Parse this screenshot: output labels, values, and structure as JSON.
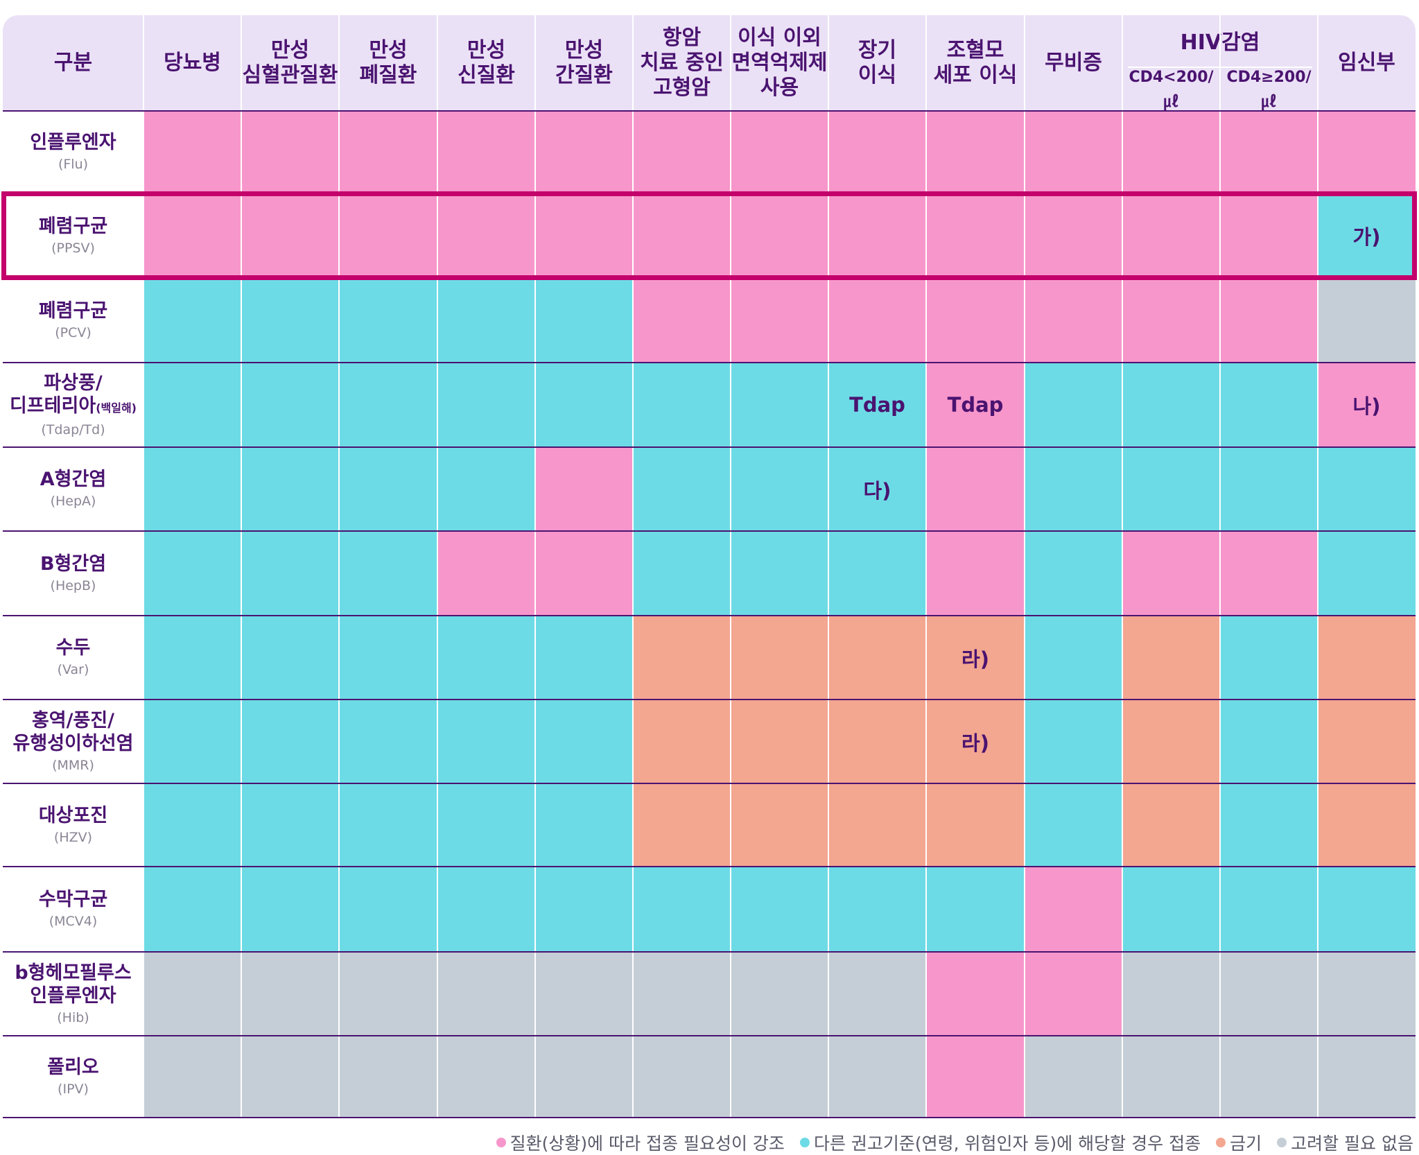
{
  "chart_data": {
    "type": "table",
    "corner_label": "구분",
    "columns": [
      {
        "label": "당뇨병"
      },
      {
        "label": "만성\n심혈관질환"
      },
      {
        "label": "만성\n폐질환"
      },
      {
        "label": "만성\n신질환"
      },
      {
        "label": "만성\n간질환"
      },
      {
        "label": "항암\n치료 중인\n고형암"
      },
      {
        "label": "이식 이외\n면역억제제\n사용"
      },
      {
        "label": "장기\n이식"
      },
      {
        "label": "조혈모\n세포 이식"
      },
      {
        "label": "무비증"
      },
      {
        "label": "CD4<200/㎕",
        "group": "HIV감염"
      },
      {
        "label": "CD4≥200/㎕",
        "group": "HIV감염"
      },
      {
        "label": "임신부"
      }
    ],
    "group_label": "HIV감염",
    "rows": [
      {
        "name": "인플루엔자",
        "abbr": "(Flu)",
        "cells": [
          "E",
          "E",
          "E",
          "E",
          "E",
          "E",
          "E",
          "E",
          "E",
          "E",
          "E",
          "E",
          "E"
        ],
        "notes": {}
      },
      {
        "name": "폐렴구균",
        "abbr": "(PPSV)",
        "cells": [
          "E",
          "E",
          "E",
          "E",
          "E",
          "E",
          "E",
          "E",
          "E",
          "E",
          "E",
          "E",
          "R"
        ],
        "notes": {
          "12": "가)"
        }
      },
      {
        "name": "폐렴구균",
        "abbr": "(PCV)",
        "cells": [
          "R",
          "R",
          "R",
          "R",
          "R",
          "E",
          "E",
          "E",
          "E",
          "E",
          "E",
          "E",
          "N"
        ],
        "notes": {}
      },
      {
        "name": "파상풍/\n디프테리아",
        "name_small": "(백일해)",
        "abbr": "(Tdap/Td)",
        "cells": [
          "R",
          "R",
          "R",
          "R",
          "R",
          "R",
          "R",
          "R",
          "E",
          "R",
          "R",
          "R",
          "E"
        ],
        "notes": {
          "7": "Tdap",
          "8": "Tdap",
          "12": "나)"
        }
      },
      {
        "name": "A형간염",
        "abbr": "(HepA)",
        "cells": [
          "R",
          "R",
          "R",
          "R",
          "E",
          "R",
          "R",
          "R",
          "E",
          "R",
          "R",
          "R",
          "R"
        ],
        "notes": {
          "7": "다)"
        }
      },
      {
        "name": "B형간염",
        "abbr": "(HepB)",
        "cells": [
          "R",
          "R",
          "R",
          "E",
          "E",
          "R",
          "R",
          "R",
          "E",
          "R",
          "E",
          "E",
          "R"
        ],
        "notes": {}
      },
      {
        "name": "수두",
        "abbr": "(Var)",
        "cells": [
          "R",
          "R",
          "R",
          "R",
          "R",
          "C",
          "C",
          "C",
          "C",
          "R",
          "C",
          "R",
          "C"
        ],
        "notes": {
          "8": "라)"
        }
      },
      {
        "name": "홍역/풍진/\n유행성이하선염",
        "abbr": "(MMR)",
        "cells": [
          "R",
          "R",
          "R",
          "R",
          "R",
          "C",
          "C",
          "C",
          "C",
          "R",
          "C",
          "R",
          "C"
        ],
        "notes": {
          "8": "라)"
        }
      },
      {
        "name": "대상포진",
        "abbr": "(HZV)",
        "cells": [
          "R",
          "R",
          "R",
          "R",
          "R",
          "C",
          "C",
          "C",
          "C",
          "R",
          "C",
          "R",
          "C"
        ],
        "notes": {}
      },
      {
        "name": "수막구균",
        "abbr": "(MCV4)",
        "cells": [
          "R",
          "R",
          "R",
          "R",
          "R",
          "R",
          "R",
          "R",
          "R",
          "E",
          "R",
          "R",
          "R"
        ],
        "notes": {}
      },
      {
        "name": "b형헤모필루스\n인플루엔자",
        "abbr": "(Hib)",
        "cells": [
          "N",
          "N",
          "N",
          "N",
          "N",
          "N",
          "N",
          "N",
          "E",
          "E",
          "N",
          "N",
          "N"
        ],
        "notes": {}
      },
      {
        "name": "폴리오",
        "abbr": "(IPV)",
        "cells": [
          "N",
          "N",
          "N",
          "N",
          "N",
          "N",
          "N",
          "N",
          "E",
          "N",
          "N",
          "N",
          "N"
        ],
        "notes": {}
      }
    ],
    "highlighted_row": 1,
    "legend": [
      {
        "code": "E",
        "label": "질환(상황)에 따라 접종 필요성이 강조",
        "color": "#f796cb"
      },
      {
        "code": "R",
        "label": "다른 권고기준(연령, 위험인자 등)에 해당할 경우 접종",
        "color": "#6ddbe5"
      },
      {
        "code": "C",
        "label": "금기",
        "color": "#f3a690"
      },
      {
        "code": "N",
        "label": "고려할 필요 없음",
        "color": "#c5ced6"
      }
    ],
    "highlight_color": "#c3006b",
    "header_background": "#ebe1f6"
  }
}
